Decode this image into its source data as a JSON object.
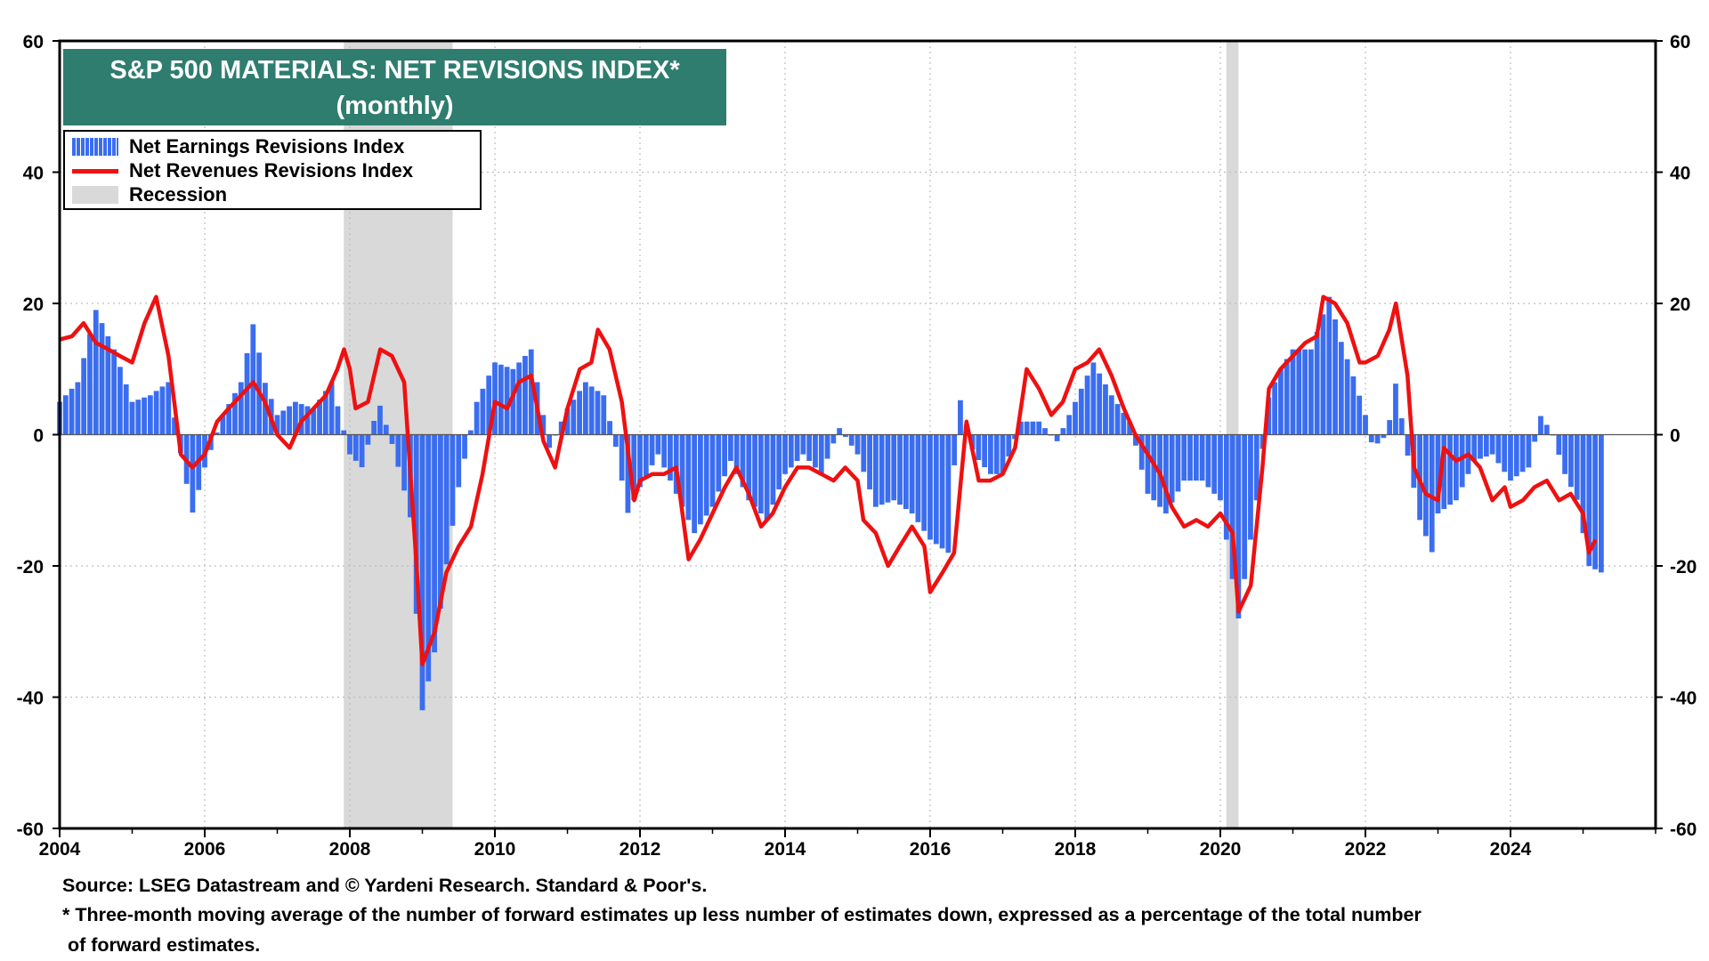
{
  "title": {
    "line1": "S&P 500 MATERIALS: NET REVISIONS INDEX*",
    "line2": "(monthly)"
  },
  "legend": {
    "earnings": "Net Earnings Revisions Index",
    "revenues": "Net Revenues Revisions Index",
    "recession": "Recession"
  },
  "footer": {
    "source": "Source: LSEG Datastream and © Yardeni Research. Standard & Poor's.",
    "note_line1": "* Three-month moving average of the number of forward estimates up less number of estimates down, expressed as a percentage of the total number",
    "note_line2": "of forward estimates."
  },
  "colors": {
    "bars": "#3a6df0",
    "line": "#ee1111",
    "recession": "#d9d9d9",
    "title_bg": "#2e7d6f"
  },
  "chart_data": {
    "type": "bar",
    "title": "S&P 500 MATERIALS: NET REVISIONS INDEX*",
    "subtitle": "(monthly)",
    "xlim": [
      2004,
      2026
    ],
    "ylim": [
      -60,
      60
    ],
    "x_ticks": [
      "2004",
      "2006",
      "2008",
      "2010",
      "2012",
      "2014",
      "2016",
      "2018",
      "2020",
      "2022",
      "2024"
    ],
    "y_ticks": [
      "60",
      "40",
      "20",
      "0",
      "-20",
      "-40",
      "-60"
    ],
    "grid": true,
    "legend_position": "top-left",
    "recessions": [
      [
        2007.917,
        2009.417
      ],
      [
        2020.083,
        2020.25
      ]
    ],
    "series": [
      {
        "name": "Net Earnings Revisions Index",
        "type": "bar",
        "points": [
          [
            2004.0,
            5
          ],
          [
            2004.25,
            8
          ],
          [
            2004.5,
            19
          ],
          [
            2004.75,
            13
          ],
          [
            2005.0,
            5
          ],
          [
            2005.25,
            6
          ],
          [
            2005.5,
            8
          ],
          [
            2005.67,
            -3
          ],
          [
            2005.83,
            -12
          ],
          [
            2006.0,
            -5
          ],
          [
            2006.25,
            3
          ],
          [
            2006.5,
            8
          ],
          [
            2006.67,
            17
          ],
          [
            2006.83,
            8
          ],
          [
            2007.0,
            3
          ],
          [
            2007.25,
            5
          ],
          [
            2007.5,
            4
          ],
          [
            2007.75,
            8
          ],
          [
            2008.0,
            -3
          ],
          [
            2008.17,
            -5
          ],
          [
            2008.4,
            5
          ],
          [
            2008.6,
            -2
          ],
          [
            2008.83,
            -12
          ],
          [
            2009.0,
            -42
          ],
          [
            2009.17,
            -33
          ],
          [
            2009.33,
            -20
          ],
          [
            2009.5,
            -8
          ],
          [
            2009.75,
            5
          ],
          [
            2010.0,
            11
          ],
          [
            2010.25,
            10
          ],
          [
            2010.5,
            13
          ],
          [
            2010.75,
            -2
          ],
          [
            2011.0,
            4
          ],
          [
            2011.25,
            8
          ],
          [
            2011.5,
            6
          ],
          [
            2011.67,
            -2
          ],
          [
            2011.83,
            -12
          ],
          [
            2012.0,
            -8
          ],
          [
            2012.25,
            -3
          ],
          [
            2012.5,
            -9
          ],
          [
            2012.75,
            -15
          ],
          [
            2013.0,
            -11
          ],
          [
            2013.25,
            -4
          ],
          [
            2013.5,
            -10
          ],
          [
            2013.75,
            -13
          ],
          [
            2014.0,
            -6
          ],
          [
            2014.25,
            -3
          ],
          [
            2014.5,
            -6
          ],
          [
            2014.75,
            1
          ],
          [
            2015.0,
            -3
          ],
          [
            2015.25,
            -11
          ],
          [
            2015.5,
            -10
          ],
          [
            2015.75,
            -12
          ],
          [
            2016.0,
            -16
          ],
          [
            2016.25,
            -18
          ],
          [
            2016.4,
            6
          ],
          [
            2016.6,
            -3
          ],
          [
            2016.83,
            -6
          ],
          [
            2017.0,
            -6
          ],
          [
            2017.25,
            2
          ],
          [
            2017.5,
            2
          ],
          [
            2017.75,
            -1
          ],
          [
            2018.0,
            5
          ],
          [
            2018.25,
            11
          ],
          [
            2018.5,
            6
          ],
          [
            2018.75,
            2
          ],
          [
            2019.0,
            -9
          ],
          [
            2019.25,
            -12
          ],
          [
            2019.5,
            -7
          ],
          [
            2019.75,
            -7
          ],
          [
            2020.0,
            -10
          ],
          [
            2020.25,
            -28
          ],
          [
            2020.5,
            -10
          ],
          [
            2020.67,
            6
          ],
          [
            2020.83,
            10
          ],
          [
            2021.0,
            13
          ],
          [
            2021.25,
            13
          ],
          [
            2021.5,
            21
          ],
          [
            2021.67,
            14
          ],
          [
            2021.83,
            9
          ],
          [
            2022.0,
            3
          ],
          [
            2022.1,
            -2
          ],
          [
            2022.3,
            0
          ],
          [
            2022.42,
            8
          ],
          [
            2022.58,
            -3
          ],
          [
            2022.75,
            -13
          ],
          [
            2022.92,
            -18
          ],
          [
            2023.0,
            -12
          ],
          [
            2023.25,
            -10
          ],
          [
            2023.5,
            -4
          ],
          [
            2023.75,
            -3
          ],
          [
            2024.0,
            -7
          ],
          [
            2024.25,
            -5
          ],
          [
            2024.42,
            3
          ],
          [
            2024.58,
            0
          ],
          [
            2024.75,
            -6
          ],
          [
            2024.92,
            -10
          ],
          [
            2025.08,
            -20
          ],
          [
            2025.25,
            -21
          ]
        ]
      },
      {
        "name": "Net Revenues Revisions Index",
        "type": "line",
        "points": [
          [
            2004.0,
            14.5
          ],
          [
            2004.17,
            15
          ],
          [
            2004.33,
            17
          ],
          [
            2004.5,
            14
          ],
          [
            2004.67,
            13
          ],
          [
            2004.83,
            12
          ],
          [
            2005.0,
            11
          ],
          [
            2005.17,
            17
          ],
          [
            2005.33,
            21
          ],
          [
            2005.5,
            12
          ],
          [
            2005.67,
            -3
          ],
          [
            2005.83,
            -5
          ],
          [
            2006.0,
            -3
          ],
          [
            2006.17,
            2
          ],
          [
            2006.33,
            4
          ],
          [
            2006.5,
            6
          ],
          [
            2006.67,
            8
          ],
          [
            2006.83,
            5
          ],
          [
            2007.0,
            0
          ],
          [
            2007.17,
            -2
          ],
          [
            2007.33,
            2
          ],
          [
            2007.5,
            4
          ],
          [
            2007.67,
            6
          ],
          [
            2007.83,
            10
          ],
          [
            2007.92,
            13
          ],
          [
            2008.0,
            10
          ],
          [
            2008.08,
            4
          ],
          [
            2008.25,
            5
          ],
          [
            2008.42,
            13
          ],
          [
            2008.58,
            12
          ],
          [
            2008.75,
            8
          ],
          [
            2008.83,
            -5
          ],
          [
            2008.92,
            -20
          ],
          [
            2009.0,
            -35
          ],
          [
            2009.17,
            -30
          ],
          [
            2009.33,
            -21
          ],
          [
            2009.5,
            -17
          ],
          [
            2009.67,
            -14
          ],
          [
            2009.83,
            -6
          ],
          [
            2010.0,
            5
          ],
          [
            2010.17,
            4
          ],
          [
            2010.33,
            8
          ],
          [
            2010.5,
            9
          ],
          [
            2010.67,
            -1
          ],
          [
            2010.83,
            -5
          ],
          [
            2011.0,
            4
          ],
          [
            2011.17,
            10
          ],
          [
            2011.33,
            11
          ],
          [
            2011.42,
            16
          ],
          [
            2011.58,
            13
          ],
          [
            2011.75,
            5
          ],
          [
            2011.83,
            -2
          ],
          [
            2011.92,
            -10
          ],
          [
            2012.0,
            -7
          ],
          [
            2012.17,
            -6
          ],
          [
            2012.33,
            -6
          ],
          [
            2012.5,
            -5
          ],
          [
            2012.67,
            -19
          ],
          [
            2012.83,
            -16
          ],
          [
            2013.0,
            -12
          ],
          [
            2013.17,
            -8
          ],
          [
            2013.33,
            -5
          ],
          [
            2013.5,
            -9
          ],
          [
            2013.67,
            -14
          ],
          [
            2013.83,
            -12
          ],
          [
            2014.0,
            -8
          ],
          [
            2014.17,
            -5
          ],
          [
            2014.33,
            -5
          ],
          [
            2014.5,
            -6
          ],
          [
            2014.67,
            -7
          ],
          [
            2014.83,
            -5
          ],
          [
            2015.0,
            -7
          ],
          [
            2015.08,
            -13
          ],
          [
            2015.25,
            -15
          ],
          [
            2015.42,
            -20
          ],
          [
            2015.58,
            -17
          ],
          [
            2015.75,
            -14
          ],
          [
            2015.92,
            -17
          ],
          [
            2016.0,
            -24
          ],
          [
            2016.17,
            -21
          ],
          [
            2016.33,
            -18
          ],
          [
            2016.5,
            2
          ],
          [
            2016.67,
            -7
          ],
          [
            2016.83,
            -7
          ],
          [
            2017.0,
            -6
          ],
          [
            2017.17,
            -2
          ],
          [
            2017.33,
            10
          ],
          [
            2017.5,
            7
          ],
          [
            2017.67,
            3
          ],
          [
            2017.83,
            5
          ],
          [
            2018.0,
            10
          ],
          [
            2018.17,
            11
          ],
          [
            2018.33,
            13
          ],
          [
            2018.5,
            9
          ],
          [
            2018.67,
            4
          ],
          [
            2018.83,
            0
          ],
          [
            2019.0,
            -3
          ],
          [
            2019.17,
            -6
          ],
          [
            2019.33,
            -11
          ],
          [
            2019.5,
            -14
          ],
          [
            2019.67,
            -13
          ],
          [
            2019.83,
            -14
          ],
          [
            2020.0,
            -12
          ],
          [
            2020.17,
            -15
          ],
          [
            2020.25,
            -27
          ],
          [
            2020.42,
            -23
          ],
          [
            2020.58,
            -5
          ],
          [
            2020.67,
            7
          ],
          [
            2020.83,
            10
          ],
          [
            2021.0,
            12
          ],
          [
            2021.17,
            14
          ],
          [
            2021.33,
            15
          ],
          [
            2021.42,
            21
          ],
          [
            2021.58,
            20
          ],
          [
            2021.75,
            17
          ],
          [
            2021.92,
            11
          ],
          [
            2022.0,
            11
          ],
          [
            2022.17,
            12
          ],
          [
            2022.33,
            16
          ],
          [
            2022.42,
            20
          ],
          [
            2022.58,
            9
          ],
          [
            2022.67,
            -5
          ],
          [
            2022.83,
            -9
          ],
          [
            2023.0,
            -10
          ],
          [
            2023.08,
            -2
          ],
          [
            2023.25,
            -4
          ],
          [
            2023.42,
            -3
          ],
          [
            2023.58,
            -5
          ],
          [
            2023.75,
            -10
          ],
          [
            2023.92,
            -8
          ],
          [
            2024.0,
            -11
          ],
          [
            2024.17,
            -10
          ],
          [
            2024.33,
            -8
          ],
          [
            2024.5,
            -7
          ],
          [
            2024.67,
            -10
          ],
          [
            2024.83,
            -9
          ],
          [
            2025.0,
            -12
          ],
          [
            2025.08,
            -18
          ],
          [
            2025.17,
            -16
          ]
        ]
      }
    ]
  }
}
